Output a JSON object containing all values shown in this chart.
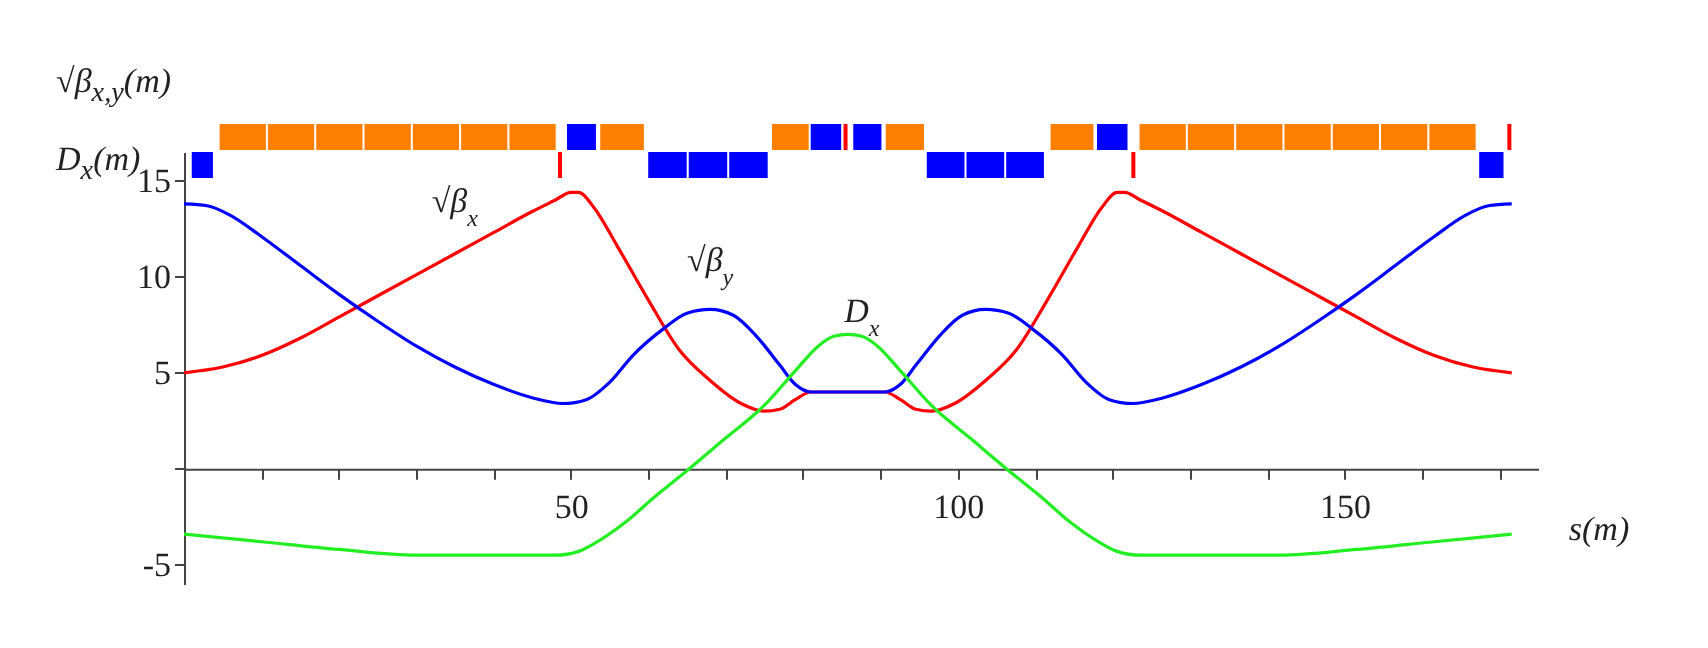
{
  "chart_data": {
    "type": "line",
    "ylabel": "√β$_{x,y}$(m)\nD$_{x}$(m)",
    "xlabel": "s(m)",
    "xlim": [
      0,
      175
    ],
    "ylim": [
      -6,
      16.5
    ],
    "xticks": [
      {
        "value": 10,
        "label": null
      },
      {
        "value": 20,
        "label": null
      },
      {
        "value": 30,
        "label": null
      },
      {
        "value": 40,
        "label": null
      },
      50,
      {
        "value": 60,
        "label": null
      },
      {
        "value": 70,
        "label": null
      },
      {
        "value": 80,
        "label": null
      },
      {
        "value": 90,
        "label": null
      },
      100,
      {
        "value": 110,
        "label": null
      },
      {
        "value": 120,
        "label": null
      },
      {
        "value": 130,
        "label": null
      },
      {
        "value": 140,
        "label": null
      },
      150,
      {
        "value": 160,
        "label": null
      },
      {
        "value": 170,
        "label": null
      }
    ],
    "yticks": [
      -5,
      {
        "value": 0,
        "label": null
      },
      5,
      10,
      15
    ],
    "grid": false,
    "series": [
      {
        "name": "√β$_{x}$",
        "color": "#ff0000",
        "x": [
          0,
          5,
          10,
          15,
          20,
          25,
          30,
          35,
          40,
          45,
          48,
          50,
          51,
          53,
          56,
          60,
          64,
          68,
          72,
          75,
          77,
          79,
          81,
          84,
          85.8,
          87.6,
          90.6,
          92.6,
          94.6,
          96.6,
          99.6,
          103.6,
          107.6,
          111.6,
          115.6,
          118.6,
          120.6,
          121.6,
          123.6,
          126.6,
          131.6,
          136.6,
          141.6,
          146.6,
          151.6,
          156.6,
          161.6,
          166.6,
          171.6
        ],
        "values": [
          5.0,
          5.3,
          5.9,
          6.8,
          7.9,
          9.0,
          10.1,
          11.2,
          12.3,
          13.4,
          14.0,
          14.4,
          14.4,
          13.6,
          11.6,
          8.8,
          6.2,
          4.6,
          3.4,
          3.0,
          3.1,
          3.6,
          4.0,
          4.0,
          4.0,
          4.0,
          4.0,
          3.6,
          3.1,
          3.0,
          3.4,
          4.6,
          6.2,
          8.8,
          11.6,
          13.6,
          14.4,
          14.4,
          14.0,
          13.4,
          12.3,
          11.2,
          10.1,
          9.0,
          7.9,
          6.8,
          5.9,
          5.3,
          5.0
        ]
      },
      {
        "name": "√β$_{y}$",
        "color": "#0000ff",
        "x": [
          0,
          3,
          6,
          10,
          15,
          20,
          25,
          30,
          35,
          40,
          45,
          49,
          52,
          55,
          58,
          62,
          65,
          68,
          71,
          74,
          77,
          79,
          81,
          85.8,
          90.6,
          92.6,
          94.6,
          97.6,
          100.6,
          103.6,
          106.6,
          109.6,
          113.6,
          116.6,
          119.6,
          122.6,
          126.6,
          131.6,
          136.6,
          141.6,
          146.6,
          151.6,
          156.6,
          161.6,
          165.6,
          168.6,
          171.6
        ],
        "values": [
          13.8,
          13.7,
          13.2,
          12.1,
          10.6,
          9.1,
          7.7,
          6.4,
          5.3,
          4.4,
          3.7,
          3.4,
          3.6,
          4.5,
          5.9,
          7.3,
          8.1,
          8.3,
          8.0,
          6.9,
          5.4,
          4.4,
          4.0,
          4.0,
          4.0,
          4.4,
          5.4,
          6.9,
          8.0,
          8.3,
          8.1,
          7.3,
          5.9,
          4.5,
          3.6,
          3.4,
          3.7,
          4.4,
          5.3,
          6.4,
          7.7,
          9.1,
          10.6,
          12.1,
          13.2,
          13.7,
          13.8
        ]
      },
      {
        "name": "D$_{x}$",
        "color": "#22ee22",
        "x": [
          0,
          10,
          20,
          30,
          40,
          48,
          51,
          53,
          57,
          61,
          65,
          70,
          75,
          79,
          82,
          84,
          85.8,
          87.6,
          89.6,
          92.6,
          96.6,
          101.6,
          106.6,
          110.6,
          114.6,
          118.6,
          120.6,
          123.6,
          131.6,
          141.6,
          151.6,
          161.6,
          171.6
        ],
        "values": [
          -3.4,
          -3.8,
          -4.2,
          -4.5,
          -4.5,
          -4.5,
          -4.3,
          -3.9,
          -2.8,
          -1.4,
          -0.1,
          1.6,
          3.3,
          5.1,
          6.4,
          6.9,
          7.0,
          6.9,
          6.4,
          5.1,
          3.3,
          1.6,
          -0.1,
          -1.4,
          -2.8,
          -3.9,
          -4.3,
          -4.5,
          -4.5,
          -4.5,
          -4.2,
          -3.8,
          -3.4
        ]
      }
    ]
  }
}
